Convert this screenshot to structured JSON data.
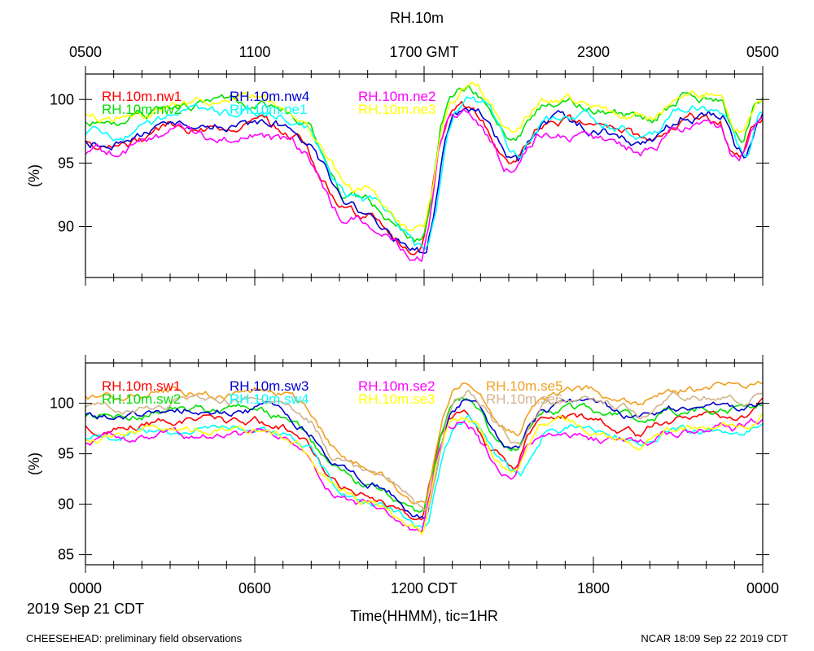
{
  "chart_data": {
    "type": "line",
    "title": "RH.10m",
    "top_axis_label_suffix": "GMT",
    "top_ticks": [
      "0500",
      "1100",
      "1700 GMT",
      "2300",
      "0500"
    ],
    "bottom_ticks": [
      "0000",
      "0600",
      "1200 CDT",
      "1800",
      "0000"
    ],
    "start_date": "2019 Sep 21 CDT",
    "xlabel": "Time(HHMM), tic=1HR",
    "ylabel": "(%)",
    "x_range_hours": [
      0,
      24
    ],
    "footer_left": "CHEESEHEAD: preliminary field observations",
    "footer_right": "NCAR 18:09 Sep 22 2019 CDT",
    "panels": [
      {
        "name": "top",
        "ylim": [
          86,
          102
        ],
        "yticks": [
          90,
          95,
          100
        ],
        "series": [
          {
            "name": "RH.10m.nw1",
            "color": "#ff0000",
            "offset": 0.0
          },
          {
            "name": "RH.10m.nw2",
            "color": "#00e000",
            "offset": 1.6
          },
          {
            "name": "RH.10m.nw4",
            "color": "#0000d0",
            "offset": 0.2
          },
          {
            "name": "RH.10m.ne1",
            "color": "#00ffff",
            "offset": 0.8
          },
          {
            "name": "RH.10m.ne2",
            "color": "#ff00ff",
            "offset": -0.6
          },
          {
            "name": "RH.10m.ne3",
            "color": "#ffff00",
            "offset": 2.0
          }
        ],
        "profile": [
          [
            0.0,
            96.5
          ],
          [
            1.0,
            96.5
          ],
          [
            2.0,
            97.0
          ],
          [
            3.0,
            98.0
          ],
          [
            4.0,
            97.8
          ],
          [
            5.0,
            97.8
          ],
          [
            6.0,
            98.0
          ],
          [
            7.0,
            97.5
          ],
          [
            7.8,
            96.5
          ],
          [
            8.5,
            93.5
          ],
          [
            9.0,
            91.5
          ],
          [
            9.6,
            91.0
          ],
          [
            10.0,
            91.0
          ],
          [
            10.5,
            90.0
          ],
          [
            11.0,
            89.0
          ],
          [
            11.5,
            88.0
          ],
          [
            11.9,
            87.8
          ],
          [
            12.2,
            91.0
          ],
          [
            12.5,
            96.0
          ],
          [
            12.8,
            98.5
          ],
          [
            13.3,
            99.3
          ],
          [
            13.8,
            99.0
          ],
          [
            14.3,
            97.5
          ],
          [
            14.8,
            95.5
          ],
          [
            15.2,
            94.8
          ],
          [
            15.6,
            96.5
          ],
          [
            16.0,
            97.8
          ],
          [
            17.0,
            98.0
          ],
          [
            18.0,
            97.5
          ],
          [
            19.0,
            97.0
          ],
          [
            20.0,
            96.5
          ],
          [
            20.5,
            97.5
          ],
          [
            21.0,
            98.5
          ],
          [
            22.0,
            98.7
          ],
          [
            22.5,
            98.5
          ],
          [
            22.9,
            96.0
          ],
          [
            23.2,
            95.5
          ],
          [
            23.6,
            98.0
          ],
          [
            24.0,
            98.8
          ]
        ]
      },
      {
        "name": "bottom",
        "ylim": [
          84,
          104
        ],
        "yticks": [
          85,
          90,
          95,
          100
        ],
        "series": [
          {
            "name": "RH.10m.sw1",
            "color": "#ff0000",
            "offset": 0.0
          },
          {
            "name": "RH.10m.sw2",
            "color": "#00e000",
            "offset": 1.0
          },
          {
            "name": "RH.10m.sw3",
            "color": "#0000d0",
            "offset": 1.3
          },
          {
            "name": "RH.10m.sw4",
            "color": "#00ffff",
            "offset": -1.0
          },
          {
            "name": "RH.10m.se2",
            "color": "#ff00ff",
            "offset": -1.3
          },
          {
            "name": "RH.10m.se3",
            "color": "#ffff00",
            "offset": -0.8
          },
          {
            "name": "RH.10m.se5",
            "color": "#f0a020",
            "offset": 3.0
          },
          {
            "name": "RH.10m.se6",
            "color": "#d2b48c",
            "offset": 2.0
          }
        ],
        "profile": [
          [
            0.0,
            97.5
          ],
          [
            1.0,
            97.5
          ],
          [
            2.0,
            98.0
          ],
          [
            3.0,
            98.3
          ],
          [
            4.0,
            98.2
          ],
          [
            5.0,
            98.0
          ],
          [
            6.0,
            98.2
          ],
          [
            7.0,
            97.5
          ],
          [
            7.8,
            96.0
          ],
          [
            8.5,
            93.0
          ],
          [
            9.0,
            92.0
          ],
          [
            9.6,
            91.2
          ],
          [
            10.0,
            91.0
          ],
          [
            10.5,
            90.5
          ],
          [
            11.0,
            89.5
          ],
          [
            11.5,
            88.5
          ],
          [
            11.9,
            88.0
          ],
          [
            12.2,
            92.0
          ],
          [
            12.5,
            96.0
          ],
          [
            12.8,
            98.5
          ],
          [
            13.3,
            99.5
          ],
          [
            13.8,
            98.5
          ],
          [
            14.3,
            96.0
          ],
          [
            14.8,
            94.5
          ],
          [
            15.2,
            94.0
          ],
          [
            15.6,
            96.5
          ],
          [
            16.0,
            98.0
          ],
          [
            17.0,
            98.5
          ],
          [
            18.0,
            98.0
          ],
          [
            19.0,
            97.5
          ],
          [
            19.5,
            97.0
          ],
          [
            20.0,
            97.5
          ],
          [
            20.5,
            98.3
          ],
          [
            21.5,
            98.5
          ],
          [
            22.5,
            98.8
          ],
          [
            23.0,
            98.5
          ],
          [
            23.5,
            99.0
          ],
          [
            24.0,
            99.5
          ]
        ]
      }
    ]
  }
}
